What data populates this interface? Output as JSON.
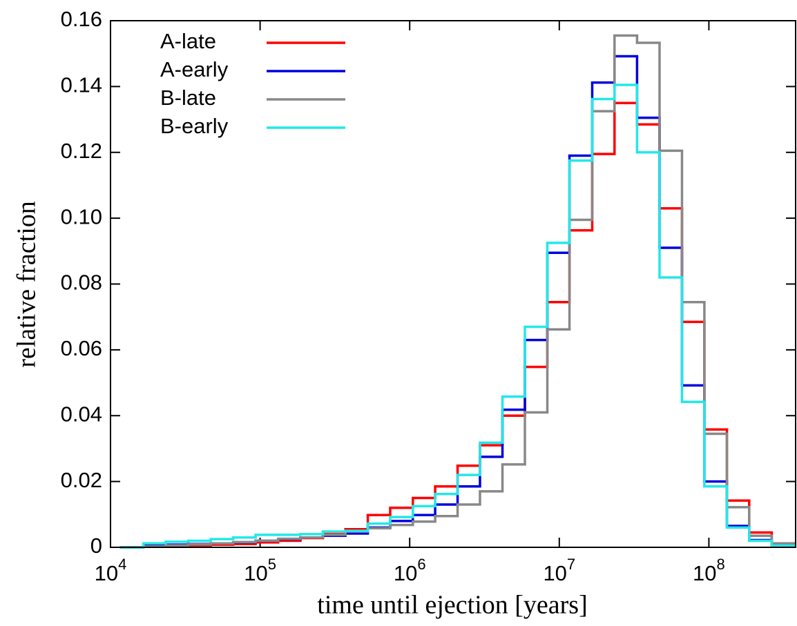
{
  "chart_data": {
    "type": "histogram",
    "xlabel": "time until ejection [years]",
    "ylabel": "relative fraction",
    "xscale": "log",
    "legend": "upper left",
    "bins": [
      11700,
      16600,
      23400,
      33100,
      46800,
      66100,
      93300,
      132000,
      186000,
      263000,
      372000,
      525000,
      741000,
      1050000,
      1480000,
      2090000,
      2950000,
      4170000,
      5890000,
      8320000,
      11700000,
      16600000,
      23400000,
      33100000,
      46800000,
      66100000,
      93300000,
      132000000,
      186000000,
      263000000,
      372000000
    ],
    "series": [
      {
        "name": "A-late",
        "color": "#ff0000",
        "values": [
          0,
          0.0002,
          0.0004,
          0.0006,
          0.0008,
          0.001,
          0.0015,
          0.002,
          0.0028,
          0.004,
          0.0055,
          0.0098,
          0.012,
          0.015,
          0.0185,
          0.0248,
          0.031,
          0.04,
          0.0548,
          0.0745,
          0.0963,
          0.1195,
          0.135,
          0.1285,
          0.103,
          0.0685,
          0.0358,
          0.0142,
          0.0045,
          0.001
        ]
      },
      {
        "name": "A-early",
        "color": "#0000dd",
        "values": [
          0,
          0.0005,
          0.0008,
          0.001,
          0.0012,
          0.0015,
          0.002,
          0.0025,
          0.003,
          0.0035,
          0.0042,
          0.006,
          0.008,
          0.0098,
          0.013,
          0.0185,
          0.0275,
          0.0418,
          0.063,
          0.0895,
          0.119,
          0.1412,
          0.1492,
          0.1305,
          0.091,
          0.0492,
          0.02,
          0.0065,
          0.0022,
          0.0005
        ]
      },
      {
        "name": "B-late",
        "color": "#888888",
        "values": [
          0,
          0.0003,
          0.0006,
          0.0009,
          0.0012,
          0.0016,
          0.002,
          0.0026,
          0.003,
          0.0038,
          0.0048,
          0.0058,
          0.0068,
          0.0078,
          0.0095,
          0.013,
          0.017,
          0.0252,
          0.041,
          0.0662,
          0.0995,
          0.1325,
          0.1555,
          0.1533,
          0.1205,
          0.0745,
          0.0345,
          0.0122,
          0.0035,
          0.0012
        ]
      },
      {
        "name": "B-early",
        "color": "#22e8e8",
        "values": [
          0,
          0.0012,
          0.0017,
          0.002,
          0.0025,
          0.003,
          0.0038,
          0.0038,
          0.004,
          0.0048,
          0.005,
          0.0072,
          0.0092,
          0.0125,
          0.0162,
          0.022,
          0.0318,
          0.0458,
          0.067,
          0.0925,
          0.1175,
          0.1362,
          0.1405,
          0.12,
          0.082,
          0.0442,
          0.0185,
          0.006,
          0.002,
          0.0005
        ]
      }
    ],
    "xlim": [
      10000,
      380000000
    ],
    "xticks": [
      {
        "value": 10000,
        "label": "10^4"
      },
      {
        "value": 100000,
        "label": "10^5"
      },
      {
        "value": 1000000,
        "label": "10^6"
      },
      {
        "value": 10000000,
        "label": "10^7"
      },
      {
        "value": 100000000,
        "label": "10^8"
      }
    ],
    "ylim": [
      0,
      0.16
    ],
    "yticks": [
      0,
      0.02,
      0.04,
      0.06,
      0.08,
      {
        "value": 0.1,
        "label": "0.10"
      },
      0.12,
      0.14,
      0.16
    ]
  }
}
